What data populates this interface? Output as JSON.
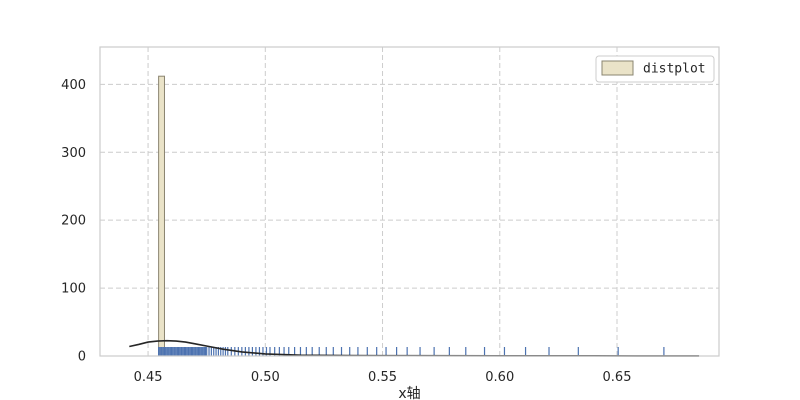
{
  "chart_data": {
    "type": "histogram",
    "title": "",
    "xlabel": "x轴",
    "ylabel": "",
    "xlim": [
      0.4295,
      0.6935
    ],
    "ylim": [
      0,
      455
    ],
    "x_ticks": [
      0.45,
      0.5,
      0.55,
      0.6,
      0.65
    ],
    "x_tick_labels": [
      "0.45",
      "0.50",
      "0.55",
      "0.60",
      "0.65"
    ],
    "y_ticks": [
      0,
      100,
      200,
      300,
      400
    ],
    "y_tick_labels": [
      "0",
      "100",
      "200",
      "300",
      "400"
    ],
    "grid": true,
    "legend": {
      "position": "top-right",
      "entries": [
        "distplot"
      ]
    },
    "histogram": {
      "bin_edges": [
        0.4545,
        0.457
      ],
      "counts": [
        412
      ],
      "color": "#eae3c8",
      "edge_color": "#8a8470"
    },
    "kde": {
      "x": [
        0.442,
        0.446,
        0.45,
        0.454,
        0.458,
        0.462,
        0.466,
        0.47,
        0.476,
        0.482,
        0.49,
        0.5,
        0.515,
        0.535,
        0.56,
        0.6,
        0.64,
        0.67,
        0.685
      ],
      "y": [
        14,
        17,
        20.5,
        22,
        22.5,
        22,
        20.5,
        18,
        14,
        10,
        6,
        3,
        1.2,
        0.6,
        0.4,
        0.3,
        0.2,
        0.1,
        0.05
      ],
      "color": "#262626"
    },
    "rug": {
      "x": [
        0.4545,
        0.455,
        0.4555,
        0.456,
        0.4565,
        0.457,
        0.4575,
        0.458,
        0.4585,
        0.459,
        0.4595,
        0.46,
        0.4605,
        0.461,
        0.4615,
        0.462,
        0.4625,
        0.463,
        0.4635,
        0.464,
        0.4645,
        0.465,
        0.4655,
        0.466,
        0.4665,
        0.467,
        0.4675,
        0.468,
        0.4685,
        0.469,
        0.4695,
        0.47,
        0.4705,
        0.471,
        0.4715,
        0.472,
        0.4725,
        0.473,
        0.4735,
        0.474,
        0.4745,
        0.475,
        0.476,
        0.477,
        0.478,
        0.479,
        0.48,
        0.481,
        0.482,
        0.483,
        0.484,
        0.4855,
        0.487,
        0.4885,
        0.49,
        0.4915,
        0.493,
        0.4945,
        0.496,
        0.4975,
        0.499,
        0.5005,
        0.502,
        0.504,
        0.506,
        0.508,
        0.51,
        0.5125,
        0.515,
        0.5175,
        0.52,
        0.523,
        0.526,
        0.529,
        0.5325,
        0.536,
        0.5395,
        0.5435,
        0.5475,
        0.5515,
        0.556,
        0.5605,
        0.566,
        0.572,
        0.5785,
        0.5855,
        0.5935,
        0.602,
        0.611,
        0.621,
        0.6335,
        0.6505,
        0.67
      ],
      "color": "#4c72b0"
    }
  }
}
